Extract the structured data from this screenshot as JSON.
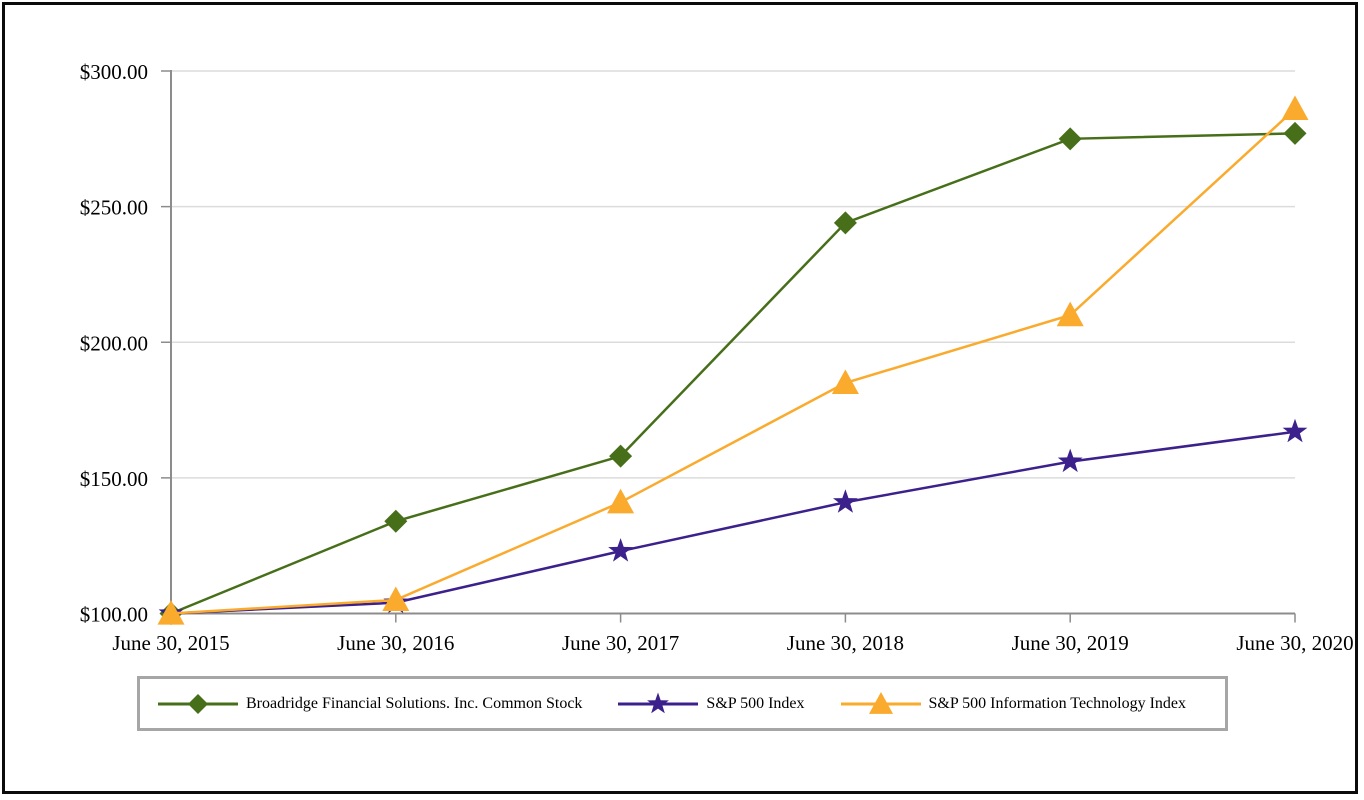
{
  "chart_data": {
    "type": "line",
    "title": "",
    "categories": [
      "June 30, 2015",
      "June 30, 2016",
      "June 30, 2017",
      "June 30, 2018",
      "June 30, 2019",
      "June 30, 2020"
    ],
    "series": [
      {
        "name": "Broadridge Financial Solutions. Inc. Common Stock",
        "marker": "diamond",
        "color": "#476f1a",
        "values": [
          100,
          134,
          158,
          244,
          275,
          277
        ]
      },
      {
        "name": "S&P 500 Index",
        "marker": "star",
        "color": "#3c208c",
        "values": [
          100,
          104,
          123,
          141,
          156,
          167
        ]
      },
      {
        "name": "S&P 500 Information Technology Index",
        "marker": "triangle",
        "color": "#faaa2d",
        "values": [
          100,
          105,
          141,
          185,
          210,
          286
        ]
      }
    ],
    "y_ticks": [
      {
        "label": "$100.00",
        "value": 100
      },
      {
        "label": "$150.00",
        "value": 150
      },
      {
        "label": "$200.00",
        "value": 200
      },
      {
        "label": "$250.00",
        "value": 250
      },
      {
        "label": "$300.00",
        "value": 300
      }
    ],
    "ylim": [
      100,
      300
    ],
    "xlabel": "",
    "ylabel": "",
    "grid": "horizontal",
    "legend_position": "bottom"
  },
  "colors": {
    "gridline": "#dcdcdc",
    "axis": "#8c8c8c",
    "page_border": "#0b0b0b",
    "legend_border": "#a6a6a6",
    "label_text": "#000000"
  }
}
